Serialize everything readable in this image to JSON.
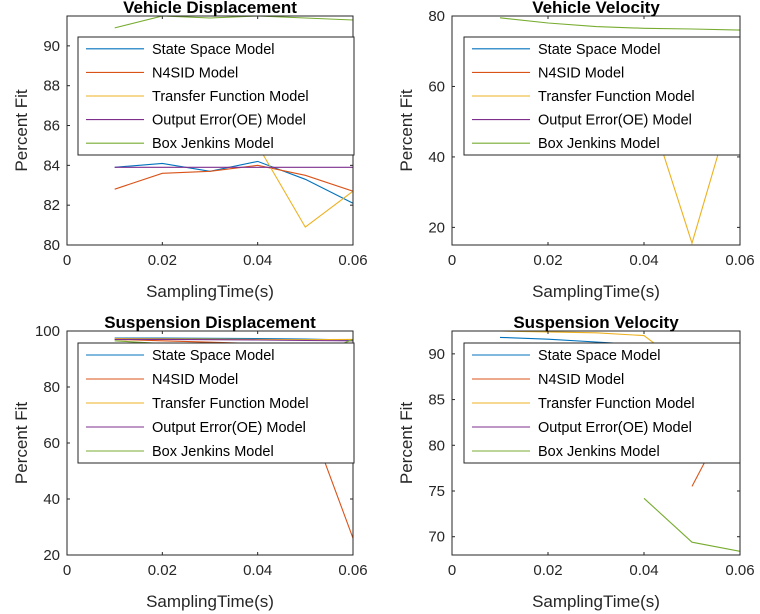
{
  "figure": {
    "colors": [
      "#0072BD",
      "#D95319",
      "#EDB120",
      "#7E2F8E",
      "#77AC30"
    ]
  },
  "chart_data": [
    {
      "type": "line",
      "title": "Vehicle Displacement",
      "xlabel": "SamplingTime(s)",
      "ylabel": "Percent Fit",
      "xlim": [
        0,
        0.06
      ],
      "ylim": [
        80,
        91.5
      ],
      "xticks": [
        0,
        0.02,
        0.04,
        0.06
      ],
      "xtick_labels": [
        "0",
        "0.02",
        "0.04",
        "0.06"
      ],
      "yticks": [
        80,
        82,
        84,
        86,
        88,
        90
      ],
      "ytick_labels": [
        "80",
        "82",
        "84",
        "86",
        "88",
        "90"
      ],
      "grid": false,
      "legend_position": "top-right",
      "x": [
        0.01,
        0.02,
        0.03,
        0.04,
        0.05,
        0.06
      ],
      "series": [
        {
          "name": "State Space Model",
          "values": [
            83.9,
            84.1,
            83.7,
            84.2,
            83.3,
            82.1
          ]
        },
        {
          "name": "N4SID Model",
          "values": [
            82.8,
            83.6,
            83.7,
            84.0,
            83.5,
            82.7
          ]
        },
        {
          "name": "Transfer Function Model",
          "values": [
            null,
            null,
            null,
            85.0,
            80.9,
            82.7
          ]
        },
        {
          "name": "Output Error(OE) Model",
          "values": [
            83.9,
            83.9,
            83.9,
            83.9,
            83.9,
            83.9
          ]
        },
        {
          "name": "Box Jenkins Model",
          "values": [
            90.9,
            91.5,
            91.4,
            91.5,
            91.4,
            91.3
          ]
        }
      ]
    },
    {
      "type": "line",
      "title": "Vehicle Velocity",
      "xlabel": "SamplingTime(s)",
      "ylabel": "Percent Fit",
      "xlim": [
        0,
        0.06
      ],
      "ylim": [
        15,
        80
      ],
      "xticks": [
        0,
        0.02,
        0.04,
        0.06
      ],
      "xtick_labels": [
        "0",
        "0.02",
        "0.04",
        "0.06"
      ],
      "yticks": [
        20,
        40,
        60,
        80
      ],
      "ytick_labels": [
        "20",
        "40",
        "60",
        "80"
      ],
      "grid": false,
      "legend_position": "top-right",
      "x": [
        0.01,
        0.02,
        0.03,
        0.04,
        0.05,
        0.06
      ],
      "series": [
        {
          "name": "State Space Model",
          "values": [
            null,
            null,
            null,
            null,
            63.5,
            63.0
          ]
        },
        {
          "name": "N4SID Model",
          "values": [
            null,
            null,
            null,
            null,
            66.0,
            65.5
          ]
        },
        {
          "name": "Transfer Function Model",
          "values": [
            null,
            null,
            null,
            58.0,
            15.5,
            62.0
          ]
        },
        {
          "name": "Output Error(OE) Model",
          "values": [
            null,
            null,
            null,
            null,
            66.0,
            65.8
          ]
        },
        {
          "name": "Box Jenkins Model",
          "values": [
            79.5,
            78.0,
            77.0,
            76.5,
            76.3,
            76.0
          ]
        }
      ]
    },
    {
      "type": "line",
      "title": "Suspension Displacement",
      "xlabel": "SamplingTime(s)",
      "ylabel": "Percent Fit",
      "xlim": [
        0,
        0.06
      ],
      "ylim": [
        20,
        100
      ],
      "xticks": [
        0,
        0.02,
        0.04,
        0.06
      ],
      "xtick_labels": [
        "0",
        "0.02",
        "0.04",
        "0.06"
      ],
      "yticks": [
        20,
        40,
        60,
        80,
        100
      ],
      "ytick_labels": [
        "20",
        "40",
        "60",
        "80",
        "100"
      ],
      "grid": false,
      "legend_position": "top-right",
      "x": [
        0.01,
        0.02,
        0.03,
        0.04,
        0.05,
        0.06
      ],
      "series": [
        {
          "name": "State Space Model",
          "values": [
            97.5,
            97.5,
            97.4,
            97.3,
            97.1,
            96.8
          ]
        },
        {
          "name": "N4SID Model",
          "values": [
            97.0,
            96.5,
            96.0,
            95.5,
            72.0,
            26.0
          ]
        },
        {
          "name": "Transfer Function Model",
          "values": [
            97.3,
            97.2,
            97.1,
            97.0,
            96.9,
            97.0
          ]
        },
        {
          "name": "Output Error(OE) Model",
          "values": [
            97.0,
            97.0,
            96.9,
            96.8,
            96.6,
            96.5
          ]
        },
        {
          "name": "Box Jenkins Model",
          "values": [
            96.5,
            95.5,
            95.0,
            94.0,
            90.0,
            97.0
          ]
        }
      ]
    },
    {
      "type": "line",
      "title": "Suspension Velocity",
      "xlabel": "SamplingTime(s)",
      "ylabel": "Percent Fit",
      "xlim": [
        0,
        0.06
      ],
      "ylim": [
        68,
        92.5
      ],
      "xticks": [
        0,
        0.02,
        0.04,
        0.06
      ],
      "xtick_labels": [
        "0",
        "0.02",
        "0.04",
        "0.06"
      ],
      "yticks": [
        70,
        75,
        80,
        85,
        90
      ],
      "ytick_labels": [
        "70",
        "75",
        "80",
        "85",
        "90"
      ],
      "grid": false,
      "legend_position": "top-right",
      "x": [
        0.01,
        0.02,
        0.03,
        0.04,
        0.05,
        0.06
      ],
      "series": [
        {
          "name": "State Space Model",
          "values": [
            91.8,
            91.6,
            91.3,
            91.0,
            90.5,
            87.5
          ]
        },
        {
          "name": "N4SID Model",
          "values": [
            null,
            null,
            null,
            null,
            75.5,
            85.5
          ]
        },
        {
          "name": "Transfer Function Model",
          "values": [
            92.5,
            92.4,
            92.3,
            92.0,
            88.0,
            91.0
          ]
        },
        {
          "name": "Output Error(OE) Model",
          "values": [
            null,
            null,
            null,
            null,
            80.3,
            80.0
          ]
        },
        {
          "name": "Box Jenkins Model",
          "values": [
            null,
            null,
            null,
            74.2,
            69.4,
            68.4
          ]
        }
      ]
    }
  ]
}
